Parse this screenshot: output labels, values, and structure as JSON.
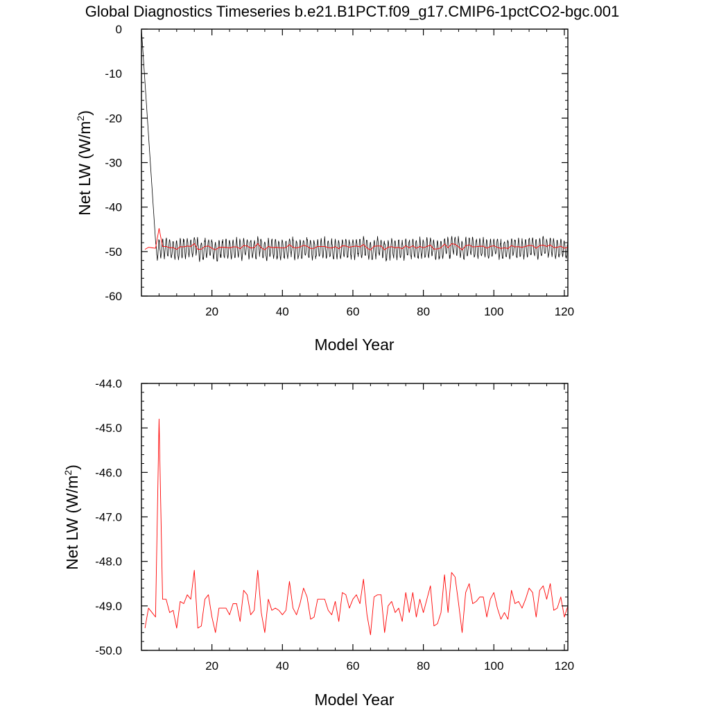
{
  "title": "Global Diagnostics Timeseries b.e21.B1PCT.f09_g17.CMIP6-1pctCO2-bgc.001",
  "colors": {
    "monthly": "#000000",
    "annual": "#ff0000",
    "frame": "#000000"
  },
  "chart_data": [
    {
      "type": "line",
      "xlabel": "Model Year",
      "ylabel_main": "Net LW (W/m",
      "ylabel_sup": "2",
      "ylabel_close": ")",
      "xlim": [
        0,
        121
      ],
      "ylim": [
        -60,
        0
      ],
      "xticks": [
        20,
        40,
        60,
        80,
        100,
        120
      ],
      "yticks": [
        0,
        -10,
        -20,
        -30,
        -40,
        -50,
        -60
      ],
      "ytick_labels": [
        "0",
        "-10",
        "-20",
        "-30",
        "-40",
        "-50",
        "-60"
      ],
      "series": [
        {
          "key": "monthly",
          "start_year": 0,
          "initial_value": 0,
          "spinup_end_year": 4,
          "seasonal_high": -46.5,
          "seasonal_low": -50.5
        },
        {
          "key": "annual",
          "x": [
            1,
            2,
            3,
            4,
            5,
            6,
            7,
            8,
            9,
            10,
            11,
            12,
            13,
            14,
            15,
            16,
            17,
            18,
            19,
            20,
            21,
            22,
            23,
            24,
            25,
            26,
            27,
            28,
            29,
            30,
            31,
            32,
            33,
            34,
            35,
            36,
            37,
            38,
            39,
            40,
            41,
            42,
            43,
            44,
            45,
            46,
            47,
            48,
            49,
            50,
            51,
            52,
            53,
            54,
            55,
            56,
            57,
            58,
            59,
            60,
            61,
            62,
            63,
            64,
            65,
            66,
            67,
            68,
            69,
            70,
            71,
            72,
            73,
            74,
            75,
            76,
            77,
            78,
            79,
            80,
            81,
            82,
            83,
            84,
            85,
            86,
            87,
            88,
            89,
            90,
            91,
            92,
            93,
            94,
            95,
            96,
            97,
            98,
            99,
            100,
            101,
            102,
            103,
            104,
            105,
            106,
            107,
            108,
            109,
            110,
            111,
            112,
            113,
            114,
            115,
            116,
            117,
            118,
            119,
            120,
            121
          ],
          "values": [
            -49.5,
            -49.05,
            -49.15,
            -49.25,
            -44.8,
            -48.85,
            -48.85,
            -49.15,
            -49.1,
            -49.5,
            -48.9,
            -48.95,
            -48.75,
            -48.85,
            -48.2,
            -49.5,
            -49.45,
            -48.85,
            -48.75,
            -49.25,
            -49.6,
            -49.05,
            -49.05,
            -49.05,
            -49.2,
            -48.95,
            -48.95,
            -49.35,
            -48.65,
            -48.75,
            -49.2,
            -49.1,
            -48.2,
            -49.15,
            -49.6,
            -48.85,
            -49.1,
            -49.05,
            -49.1,
            -49.2,
            -49.1,
            -48.45,
            -49.05,
            -49.2,
            -48.95,
            -48.6,
            -48.8,
            -49.3,
            -49.25,
            -48.85,
            -48.85,
            -48.85,
            -49.1,
            -49.2,
            -48.9,
            -49.35,
            -48.7,
            -48.75,
            -49.05,
            -48.85,
            -48.75,
            -48.95,
            -48.4,
            -49.2,
            -49.65,
            -48.8,
            -48.75,
            -48.75,
            -49.6,
            -49.0,
            -48.9,
            -49.15,
            -49.05,
            -49.35,
            -48.7,
            -49.15,
            -48.7,
            -49.25,
            -48.85,
            -49.15,
            -48.85,
            -48.55,
            -49.45,
            -49.4,
            -49.15,
            -48.3,
            -49.15,
            -48.25,
            -48.35,
            -48.95,
            -49.6,
            -48.7,
            -48.5,
            -48.95,
            -48.9,
            -48.8,
            -48.8,
            -49.25,
            -48.85,
            -48.7,
            -49.05,
            -49.3,
            -49.15,
            -49.3,
            -48.65,
            -48.95,
            -48.9,
            -49.05,
            -48.85,
            -48.6,
            -48.7,
            -49.25,
            -48.65,
            -48.55,
            -48.85,
            -48.5,
            -49.1,
            -49.05,
            -48.8,
            -49.25,
            -49.0
          ]
        }
      ]
    },
    {
      "type": "line",
      "xlabel": "Model Year",
      "ylabel_main": "Net LW (W/m",
      "ylabel_sup": "2",
      "ylabel_close": ")",
      "xlim": [
        0,
        121
      ],
      "ylim": [
        -50,
        -44
      ],
      "xticks": [
        20,
        40,
        60,
        80,
        100,
        120
      ],
      "yticks": [
        -44,
        -45,
        -46,
        -47,
        -48,
        -49,
        -50
      ],
      "ytick_labels": [
        "-44.0",
        "-45.0",
        "-46.0",
        "-47.0",
        "-48.0",
        "-49.0",
        "-50.0"
      ],
      "series": [
        {
          "key": "annual",
          "ref": "chart_data.0.series.1"
        }
      ]
    }
  ]
}
